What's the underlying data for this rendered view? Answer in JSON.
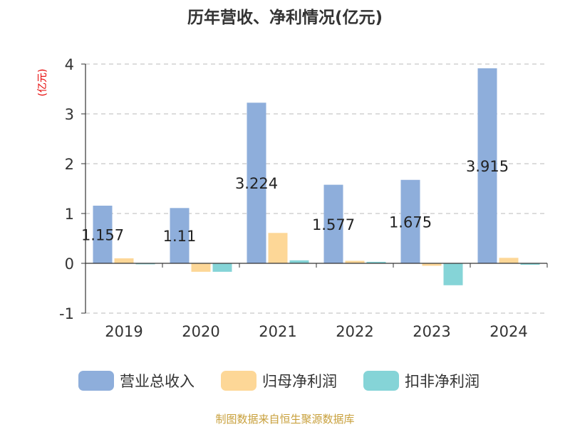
{
  "title": "历年营收、净利情况(亿元)",
  "unit_label": "(亿元)",
  "source": "制图数据来自恒生聚源数据库",
  "colors": {
    "title": "#333333",
    "unit": "#e60000",
    "source": "#c8a03c",
    "grid": "#c8c8c8",
    "axis": "#333333",
    "tick_text": "#333333"
  },
  "chart_data": {
    "type": "bar",
    "categories": [
      "2019",
      "2020",
      "2021",
      "2022",
      "2023",
      "2024"
    ],
    "series": [
      {
        "name": "营业总收入",
        "color": "#8eaedb",
        "values": [
          1.157,
          1.11,
          3.224,
          1.577,
          1.675,
          3.915
        ],
        "labels": [
          "1.157",
          "1.11",
          "3.224",
          "1.577",
          "1.675",
          "3.915"
        ]
      },
      {
        "name": "归母净利润",
        "color": "#fdd797",
        "values": [
          0.1,
          -0.17,
          0.61,
          0.05,
          -0.05,
          0.11
        ]
      },
      {
        "name": "扣非净利润",
        "color": "#85d4d7",
        "values": [
          -0.02,
          -0.17,
          0.06,
          0.03,
          -0.44,
          -0.03
        ]
      }
    ],
    "ylim": [
      -1,
      4
    ],
    "yticks": [
      -1,
      0,
      1,
      2,
      3,
      4
    ],
    "grid": true,
    "legend_position": "bottom"
  }
}
